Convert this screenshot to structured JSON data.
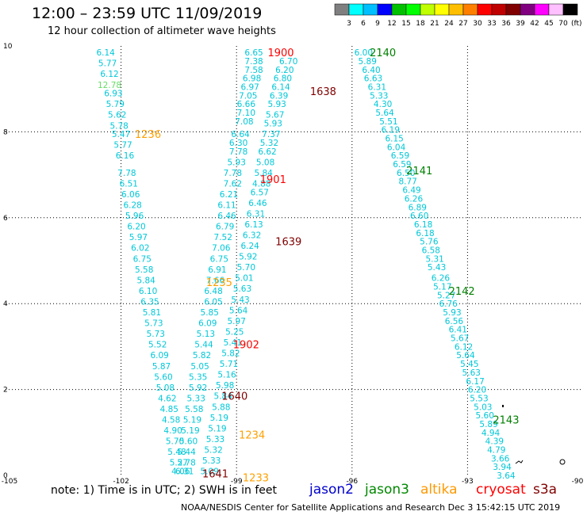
{
  "title": "12:00 – 23:59 UTC 11/09/2019",
  "subtitle": "12 hour collection of altimeter wave heights",
  "colorbar": {
    "colors": [
      "#7f7f7f",
      "#00ffff",
      "#00bfff",
      "#0000ff",
      "#00c000",
      "#00ff00",
      "#bfff00",
      "#ffff00",
      "#ffbf00",
      "#ff8000",
      "#ff0000",
      "#c00000",
      "#800000",
      "#800080",
      "#ff00ff",
      "#ffc0ff",
      "#000000"
    ],
    "labels": [
      "3",
      "6",
      "9",
      "12",
      "15",
      "18",
      "21",
      "24",
      "27",
      "30",
      "33",
      "36",
      "39",
      "42",
      "45",
      "70"
    ],
    "unit": "(ft)"
  },
  "axes": {
    "lon_labels": [
      "-105",
      "-102",
      "-99",
      "-96",
      "-93",
      "-90"
    ],
    "lat_labels": [
      "0",
      "2",
      "4",
      "6",
      "8",
      "10"
    ]
  },
  "tracks": [
    {
      "satellite": "jason3",
      "color": "#00c8d8",
      "points": [
        {
          "lon": -102.4,
          "lat": 9.85,
          "v": "6.14"
        },
        {
          "lon": -102.35,
          "lat": 9.6,
          "v": "5.77"
        },
        {
          "lon": -102.3,
          "lat": 9.35,
          "v": "6.12"
        },
        {
          "lon": -102.3,
          "lat": 9.1,
          "v": "12.78",
          "color": "#66dd66"
        },
        {
          "lon": -102.2,
          "lat": 8.9,
          "v": "6.93"
        },
        {
          "lon": -102.15,
          "lat": 8.65,
          "v": "5.79"
        },
        {
          "lon": -102.1,
          "lat": 8.4,
          "v": "5.62"
        },
        {
          "lon": -102.05,
          "lat": 8.15,
          "v": "5.78"
        },
        {
          "lon": -102.0,
          "lat": 7.95,
          "v": "5.47"
        },
        {
          "lon": -101.95,
          "lat": 7.7,
          "v": "5.77"
        },
        {
          "lon": -101.9,
          "lat": 7.45,
          "v": "6.16"
        },
        {
          "lon": -101.85,
          "lat": 7.05,
          "v": "7.78"
        },
        {
          "lon": -101.8,
          "lat": 6.8,
          "v": "6.51"
        },
        {
          "lon": -101.75,
          "lat": 6.55,
          "v": "6.06"
        },
        {
          "lon": -101.7,
          "lat": 6.3,
          "v": "6.28"
        },
        {
          "lon": -101.65,
          "lat": 6.05,
          "v": "5.96"
        },
        {
          "lon": -101.6,
          "lat": 5.8,
          "v": "6.20"
        },
        {
          "lon": -101.55,
          "lat": 5.55,
          "v": "5.97"
        },
        {
          "lon": -101.5,
          "lat": 5.3,
          "v": "6.02"
        },
        {
          "lon": -101.45,
          "lat": 5.05,
          "v": "6.75"
        },
        {
          "lon": -101.4,
          "lat": 4.8,
          "v": "5.58"
        },
        {
          "lon": -101.35,
          "lat": 4.55,
          "v": "5.84"
        },
        {
          "lon": -101.3,
          "lat": 4.3,
          "v": "6.10"
        },
        {
          "lon": -101.25,
          "lat": 4.05,
          "v": "6.35"
        },
        {
          "lon": -101.2,
          "lat": 3.8,
          "v": "5.81"
        },
        {
          "lon": -101.15,
          "lat": 3.55,
          "v": "5.73"
        },
        {
          "lon": -101.1,
          "lat": 3.3,
          "v": "5.73"
        },
        {
          "lon": -101.05,
          "lat": 3.05,
          "v": "5.52"
        },
        {
          "lon": -101.0,
          "lat": 2.8,
          "v": "6.09"
        },
        {
          "lon": -100.95,
          "lat": 2.55,
          "v": "5.87"
        },
        {
          "lon": -100.9,
          "lat": 2.3,
          "v": "5.60"
        },
        {
          "lon": -100.85,
          "lat": 2.05,
          "v": "5.08"
        },
        {
          "lon": -100.8,
          "lat": 1.8,
          "v": "4.62"
        },
        {
          "lon": -100.75,
          "lat": 1.55,
          "v": "4.85"
        },
        {
          "lon": -100.7,
          "lat": 1.3,
          "v": "4.58"
        },
        {
          "lon": -100.65,
          "lat": 1.05,
          "v": "4.90"
        },
        {
          "lon": -100.6,
          "lat": 0.8,
          "v": "5.70"
        },
        {
          "lon": -100.55,
          "lat": 0.55,
          "v": "5.48"
        },
        {
          "lon": -100.5,
          "lat": 0.3,
          "v": "5.27"
        },
        {
          "lon": -100.45,
          "lat": 0.1,
          "v": "4.06"
        }
      ]
    },
    {
      "satellite": "jason3",
      "color": "#00c8d8",
      "points": [
        {
          "lon": -98.55,
          "lat": 9.85,
          "v": "6.65"
        },
        {
          "lon": -98.55,
          "lat": 9.65,
          "v": "7.38"
        },
        {
          "lon": -98.55,
          "lat": 9.45,
          "v": "7.58"
        },
        {
          "lon": -98.6,
          "lat": 9.25,
          "v": "6.98"
        },
        {
          "lon": -98.65,
          "lat": 9.05,
          "v": "6.97"
        },
        {
          "lon": -98.7,
          "lat": 8.85,
          "v": "7.05"
        },
        {
          "lon": -98.75,
          "lat": 8.65,
          "v": "6.66"
        },
        {
          "lon": -98.75,
          "lat": 8.45,
          "v": "7.10"
        },
        {
          "lon": -98.8,
          "lat": 8.25,
          "v": "7.08"
        },
        {
          "lon": -98.9,
          "lat": 7.95,
          "v": "6.64"
        },
        {
          "lon": -98.95,
          "lat": 7.75,
          "v": "6.30"
        },
        {
          "lon": -98.95,
          "lat": 7.55,
          "v": "7.78"
        },
        {
          "lon": -99.0,
          "lat": 7.3,
          "v": "5.93"
        },
        {
          "lon": -99.1,
          "lat": 7.05,
          "v": "7.78"
        },
        {
          "lon": -99.1,
          "lat": 6.8,
          "v": "7.62"
        },
        {
          "lon": -99.2,
          "lat": 6.55,
          "v": "6.21"
        },
        {
          "lon": -99.25,
          "lat": 6.3,
          "v": "6.11"
        },
        {
          "lon": -99.25,
          "lat": 6.05,
          "v": "6.46"
        },
        {
          "lon": -99.3,
          "lat": 5.8,
          "v": "6.79"
        },
        {
          "lon": -99.35,
          "lat": 5.55,
          "v": "7.52"
        },
        {
          "lon": -99.4,
          "lat": 5.3,
          "v": "7.06"
        },
        {
          "lon": -99.45,
          "lat": 5.05,
          "v": "6.75"
        },
        {
          "lon": -99.5,
          "lat": 4.8,
          "v": "6.91"
        },
        {
          "lon": -99.55,
          "lat": 4.55,
          "v": "7.66"
        },
        {
          "lon": -99.6,
          "lat": 4.3,
          "v": "6.48"
        },
        {
          "lon": -99.6,
          "lat": 4.05,
          "v": "6.05"
        },
        {
          "lon": -99.7,
          "lat": 3.8,
          "v": "5.85"
        },
        {
          "lon": -99.75,
          "lat": 3.55,
          "v": "6.09"
        },
        {
          "lon": -99.8,
          "lat": 3.3,
          "v": "5.13"
        },
        {
          "lon": -99.85,
          "lat": 3.05,
          "v": "5.44"
        },
        {
          "lon": -99.9,
          "lat": 2.8,
          "v": "5.82"
        },
        {
          "lon": -99.95,
          "lat": 2.55,
          "v": "5.05"
        },
        {
          "lon": -100.0,
          "lat": 2.3,
          "v": "5.35"
        },
        {
          "lon": -100.0,
          "lat": 2.05,
          "v": "5.92"
        },
        {
          "lon": -100.05,
          "lat": 1.8,
          "v": "5.33"
        },
        {
          "lon": -100.1,
          "lat": 1.55,
          "v": "5.58"
        },
        {
          "lon": -100.15,
          "lat": 1.3,
          "v": "5.19"
        },
        {
          "lon": -100.2,
          "lat": 1.05,
          "v": "5.19"
        },
        {
          "lon": -100.25,
          "lat": 0.8,
          "v": "5.60"
        },
        {
          "lon": -100.3,
          "lat": 0.55,
          "v": "5.44"
        },
        {
          "lon": -100.3,
          "lat": 0.3,
          "v": "5.78"
        },
        {
          "lon": -100.35,
          "lat": 0.1,
          "v": "6.31"
        }
      ]
    },
    {
      "satellite": "jason3",
      "color": "#00c8d8",
      "points": [
        {
          "lon": -97.65,
          "lat": 9.65,
          "v": "6.70"
        },
        {
          "lon": -97.75,
          "lat": 9.45,
          "v": "6.20"
        },
        {
          "lon": -97.8,
          "lat": 9.25,
          "v": "6.80"
        },
        {
          "lon": -97.85,
          "lat": 9.05,
          "v": "6.14"
        },
        {
          "lon": -97.9,
          "lat": 8.85,
          "v": "6.39"
        },
        {
          "lon": -97.95,
          "lat": 8.65,
          "v": "5.93"
        },
        {
          "lon": -98.0,
          "lat": 8.4,
          "v": "5.67"
        },
        {
          "lon": -98.05,
          "lat": 8.2,
          "v": "5.93"
        },
        {
          "lon": -98.1,
          "lat": 7.95,
          "v": "7.37"
        },
        {
          "lon": -98.15,
          "lat": 7.75,
          "v": "5.32"
        },
        {
          "lon": -98.2,
          "lat": 7.55,
          "v": "6.62"
        },
        {
          "lon": -98.25,
          "lat": 7.3,
          "v": "5.08"
        },
        {
          "lon": -98.3,
          "lat": 7.05,
          "v": "5.84"
        },
        {
          "lon": -98.35,
          "lat": 6.8,
          "v": "4.88"
        },
        {
          "lon": -98.4,
          "lat": 6.6,
          "v": "6.57"
        },
        {
          "lon": -98.45,
          "lat": 6.35,
          "v": "6.46"
        },
        {
          "lon": -98.5,
          "lat": 6.1,
          "v": "6.31"
        },
        {
          "lon": -98.55,
          "lat": 5.85,
          "v": "6.13"
        },
        {
          "lon": -98.6,
          "lat": 5.6,
          "v": "6.32"
        },
        {
          "lon": -98.65,
          "lat": 5.35,
          "v": "6.24"
        },
        {
          "lon": -98.7,
          "lat": 5.1,
          "v": "5.92"
        },
        {
          "lon": -98.75,
          "lat": 4.85,
          "v": "5.70"
        },
        {
          "lon": -98.8,
          "lat": 4.6,
          "v": "5.01"
        },
        {
          "lon": -98.85,
          "lat": 4.35,
          "v": "5.63"
        },
        {
          "lon": -98.9,
          "lat": 4.1,
          "v": "5.43"
        },
        {
          "lon": -98.95,
          "lat": 3.85,
          "v": "5.64"
        },
        {
          "lon": -99.0,
          "lat": 3.6,
          "v": "5.97"
        },
        {
          "lon": -99.05,
          "lat": 3.35,
          "v": "5.25"
        },
        {
          "lon": -99.1,
          "lat": 3.1,
          "v": "5.41"
        },
        {
          "lon": -99.15,
          "lat": 2.85,
          "v": "5.82"
        },
        {
          "lon": -99.2,
          "lat": 2.6,
          "v": "5.71"
        },
        {
          "lon": -99.25,
          "lat": 2.35,
          "v": "5.16"
        },
        {
          "lon": -99.3,
          "lat": 2.1,
          "v": "5.98"
        },
        {
          "lon": -99.35,
          "lat": 1.85,
          "v": "5.84"
        },
        {
          "lon": -99.4,
          "lat": 1.6,
          "v": "5.88"
        },
        {
          "lon": -99.45,
          "lat": 1.35,
          "v": "5.19"
        },
        {
          "lon": -99.5,
          "lat": 1.1,
          "v": "5.19"
        },
        {
          "lon": -99.55,
          "lat": 0.85,
          "v": "5.33"
        },
        {
          "lon": -99.6,
          "lat": 0.6,
          "v": "5.32"
        },
        {
          "lon": -99.65,
          "lat": 0.35,
          "v": "5.33"
        },
        {
          "lon": -99.7,
          "lat": 0.1,
          "v": "5.09"
        }
      ]
    },
    {
      "satellite": "jason3",
      "color": "#00c8d8",
      "points": [
        {
          "lon": -95.7,
          "lat": 9.85,
          "v": "6.00"
        },
        {
          "lon": -95.6,
          "lat": 9.65,
          "v": "5.89"
        },
        {
          "lon": -95.5,
          "lat": 9.45,
          "v": "6.40"
        },
        {
          "lon": -95.45,
          "lat": 9.25,
          "v": "6.63"
        },
        {
          "lon": -95.35,
          "lat": 9.05,
          "v": "6.31"
        },
        {
          "lon": -95.3,
          "lat": 8.85,
          "v": "5.33"
        },
        {
          "lon": -95.2,
          "lat": 8.65,
          "v": "4.30"
        },
        {
          "lon": -95.15,
          "lat": 8.45,
          "v": "5.64"
        },
        {
          "lon": -95.05,
          "lat": 8.25,
          "v": "5.51"
        },
        {
          "lon": -95.0,
          "lat": 8.05,
          "v": "6.19"
        },
        {
          "lon": -94.9,
          "lat": 7.85,
          "v": "6.15"
        },
        {
          "lon": -94.85,
          "lat": 7.65,
          "v": "6.04"
        },
        {
          "lon": -94.75,
          "lat": 7.45,
          "v": "6.59"
        },
        {
          "lon": -94.7,
          "lat": 7.25,
          "v": "6.59"
        },
        {
          "lon": -94.6,
          "lat": 7.05,
          "v": "6.50"
        },
        {
          "lon": -94.55,
          "lat": 6.85,
          "v": "8.77"
        },
        {
          "lon": -94.45,
          "lat": 6.65,
          "v": "6.49"
        },
        {
          "lon": -94.4,
          "lat": 6.45,
          "v": "6.26"
        },
        {
          "lon": -94.3,
          "lat": 6.25,
          "v": "6.89"
        },
        {
          "lon": -94.25,
          "lat": 6.05,
          "v": "6.60"
        },
        {
          "lon": -94.15,
          "lat": 5.85,
          "v": "6.18"
        },
        {
          "lon": -94.1,
          "lat": 5.65,
          "v": "6.18"
        },
        {
          "lon": -94.0,
          "lat": 5.45,
          "v": "5.76"
        },
        {
          "lon": -93.95,
          "lat": 5.25,
          "v": "6.58"
        },
        {
          "lon": -93.85,
          "lat": 5.05,
          "v": "5.31"
        },
        {
          "lon": -93.8,
          "lat": 4.85,
          "v": "5.43"
        },
        {
          "lon": -93.7,
          "lat": 4.6,
          "v": "6.26"
        },
        {
          "lon": -93.65,
          "lat": 4.4,
          "v": "5.17"
        },
        {
          "lon": -93.55,
          "lat": 4.2,
          "v": "5.27"
        },
        {
          "lon": -93.5,
          "lat": 4.0,
          "v": "6.76"
        },
        {
          "lon": -93.4,
          "lat": 3.8,
          "v": "5.93"
        },
        {
          "lon": -93.35,
          "lat": 3.6,
          "v": "6.56"
        },
        {
          "lon": -93.25,
          "lat": 3.4,
          "v": "6.41"
        },
        {
          "lon": -93.2,
          "lat": 3.2,
          "v": "5.67"
        },
        {
          "lon": -93.1,
          "lat": 3.0,
          "v": "6.12"
        },
        {
          "lon": -93.05,
          "lat": 2.8,
          "v": "5.64"
        },
        {
          "lon": -92.95,
          "lat": 2.6,
          "v": "5.45"
        },
        {
          "lon": -92.9,
          "lat": 2.4,
          "v": "5.63"
        },
        {
          "lon": -92.8,
          "lat": 2.2,
          "v": "6.17"
        },
        {
          "lon": -92.75,
          "lat": 2.0,
          "v": "6.20"
        },
        {
          "lon": -92.7,
          "lat": 1.8,
          "v": "5.53"
        },
        {
          "lon": -92.6,
          "lat": 1.6,
          "v": "5.03"
        },
        {
          "lon": -92.55,
          "lat": 1.4,
          "v": "5.60"
        },
        {
          "lon": -92.45,
          "lat": 1.2,
          "v": "5.89"
        },
        {
          "lon": -92.4,
          "lat": 1.0,
          "v": "4.94"
        },
        {
          "lon": -92.3,
          "lat": 0.8,
          "v": "4.39"
        },
        {
          "lon": -92.25,
          "lat": 0.6,
          "v": "4.79"
        },
        {
          "lon": -92.15,
          "lat": 0.4,
          "v": "3.66"
        },
        {
          "lon": -92.1,
          "lat": 0.2,
          "v": "3.94"
        },
        {
          "lon": -92.0,
          "lat": 0.0,
          "v": "3.64"
        }
      ]
    }
  ],
  "time_labels": [
    {
      "lon": -97.85,
      "lat": 9.85,
      "t": "1900",
      "color": "#ff0000"
    },
    {
      "lon": -96.75,
      "lat": 8.95,
      "t": "1638",
      "color": "#800000"
    },
    {
      "lon": -101.3,
      "lat": 7.95,
      "t": "1236",
      "color": "#ffa000"
    },
    {
      "lon": -98.05,
      "lat": 6.9,
      "t": "1901",
      "color": "#ff0000"
    },
    {
      "lon": -97.65,
      "lat": 5.45,
      "t": "1639",
      "color": "#800000"
    },
    {
      "lon": -99.45,
      "lat": 4.5,
      "t": "1235",
      "color": "#ffa000"
    },
    {
      "lon": -98.75,
      "lat": 3.05,
      "t": "1902",
      "color": "#ff0000"
    },
    {
      "lon": -99.05,
      "lat": 1.85,
      "t": "1640",
      "color": "#800000"
    },
    {
      "lon": -98.6,
      "lat": 0.95,
      "t": "1234",
      "color": "#ffa000"
    },
    {
      "lon": -99.55,
      "lat": 0.05,
      "t": "1641",
      "color": "#800000"
    },
    {
      "lon": -98.5,
      "lat": -0.05,
      "t": "1233",
      "color": "#ffa000"
    },
    {
      "lon": -95.2,
      "lat": 9.85,
      "t": "2140",
      "color": "#008000"
    },
    {
      "lon": -94.25,
      "lat": 7.1,
      "t": "2141",
      "color": "#008000"
    },
    {
      "lon": -93.15,
      "lat": 4.3,
      "t": "2142",
      "color": "#008000"
    },
    {
      "lon": -92.0,
      "lat": 1.3,
      "t": "2143",
      "color": "#008000"
    }
  ],
  "legend": [
    {
      "name": "jason2",
      "color": "#0000cc"
    },
    {
      "name": "jason3",
      "color": "#008800"
    },
    {
      "name": "altika",
      "color": "#ff9900"
    },
    {
      "name": "cryosat",
      "color": "#ff0000"
    },
    {
      "name": "s3a",
      "color": "#800000"
    }
  ],
  "note": "note: 1) Time is in UTC; 2) SWH is in feet",
  "credit": "NOAA/NESDIS Center for Satellite Applications and Research   Dec  3 15:42:15 UTC 2019"
}
